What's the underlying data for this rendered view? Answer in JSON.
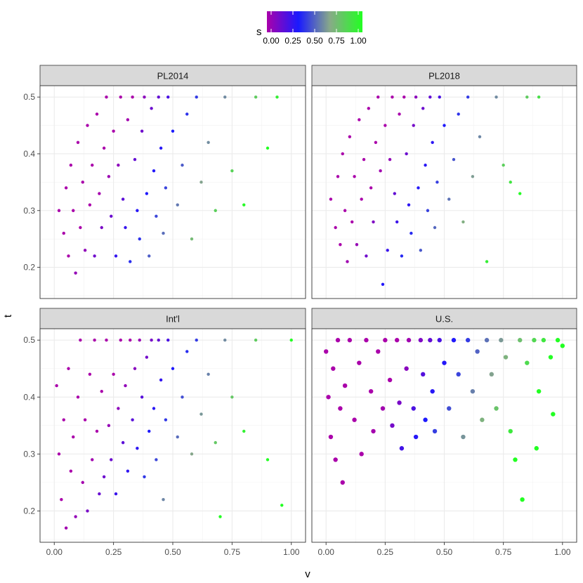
{
  "chart_data": {
    "type": "scatter",
    "xlabel": "v",
    "ylabel": "t",
    "xlim": [
      -0.06,
      1.06
    ],
    "x_ticks": [
      0.0,
      0.25,
      0.5,
      0.75,
      1.0
    ],
    "x_tick_labels": [
      "0.00",
      "0.25",
      "0.50",
      "0.75",
      "1.00"
    ],
    "y_ticks": [
      0.2,
      0.3,
      0.4,
      0.5
    ],
    "y_tick_labels": [
      "0.2",
      "0.3",
      "0.4",
      "0.5"
    ],
    "grid": true,
    "legend": {
      "title": "s",
      "placement": "top",
      "type": "colorbar",
      "range": [
        0,
        1
      ],
      "ticks": [
        0.0,
        0.25,
        0.5,
        0.75,
        1.0
      ],
      "tick_labels": [
        "0.00",
        "0.25",
        "0.50",
        "0.75",
        "1.00"
      ],
      "colors": [
        "#aa00aa",
        "#1a1aff",
        "#88aa88",
        "#22ff22"
      ]
    },
    "panels": [
      {
        "label": "PL2014",
        "ylim": [
          0.145,
          0.52
        ],
        "points": [
          [
            0.02,
            0.3
          ],
          [
            0.04,
            0.26
          ],
          [
            0.05,
            0.34
          ],
          [
            0.06,
            0.22
          ],
          [
            0.07,
            0.38
          ],
          [
            0.08,
            0.3
          ],
          [
            0.09,
            0.19
          ],
          [
            0.1,
            0.42
          ],
          [
            0.11,
            0.27
          ],
          [
            0.12,
            0.35
          ],
          [
            0.13,
            0.23
          ],
          [
            0.14,
            0.45
          ],
          [
            0.15,
            0.31
          ],
          [
            0.16,
            0.38
          ],
          [
            0.17,
            0.22
          ],
          [
            0.18,
            0.47
          ],
          [
            0.19,
            0.33
          ],
          [
            0.2,
            0.27
          ],
          [
            0.21,
            0.41
          ],
          [
            0.22,
            0.5
          ],
          [
            0.23,
            0.36
          ],
          [
            0.24,
            0.29
          ],
          [
            0.25,
            0.44
          ],
          [
            0.26,
            0.22
          ],
          [
            0.27,
            0.38
          ],
          [
            0.28,
            0.5
          ],
          [
            0.29,
            0.32
          ],
          [
            0.3,
            0.27
          ],
          [
            0.31,
            0.46
          ],
          [
            0.32,
            0.21
          ],
          [
            0.33,
            0.5
          ],
          [
            0.34,
            0.39
          ],
          [
            0.35,
            0.3
          ],
          [
            0.36,
            0.25
          ],
          [
            0.37,
            0.44
          ],
          [
            0.38,
            0.5
          ],
          [
            0.39,
            0.33
          ],
          [
            0.4,
            0.22
          ],
          [
            0.41,
            0.48
          ],
          [
            0.42,
            0.37
          ],
          [
            0.43,
            0.29
          ],
          [
            0.44,
            0.5
          ],
          [
            0.45,
            0.41
          ],
          [
            0.46,
            0.26
          ],
          [
            0.47,
            0.34
          ],
          [
            0.48,
            0.5
          ],
          [
            0.5,
            0.44
          ],
          [
            0.52,
            0.31
          ],
          [
            0.54,
            0.38
          ],
          [
            0.56,
            0.47
          ],
          [
            0.58,
            0.25
          ],
          [
            0.6,
            0.5
          ],
          [
            0.62,
            0.35
          ],
          [
            0.65,
            0.42
          ],
          [
            0.68,
            0.3
          ],
          [
            0.72,
            0.5
          ],
          [
            0.75,
            0.37
          ],
          [
            0.8,
            0.31
          ],
          [
            0.85,
            0.5
          ],
          [
            0.9,
            0.41
          ],
          [
            0.94,
            0.5
          ]
        ]
      },
      {
        "label": "PL2018",
        "ylim": [
          0.145,
          0.52
        ],
        "points": [
          [
            0.02,
            0.32
          ],
          [
            0.04,
            0.27
          ],
          [
            0.05,
            0.36
          ],
          [
            0.06,
            0.24
          ],
          [
            0.07,
            0.4
          ],
          [
            0.08,
            0.3
          ],
          [
            0.09,
            0.21
          ],
          [
            0.1,
            0.43
          ],
          [
            0.11,
            0.28
          ],
          [
            0.12,
            0.36
          ],
          [
            0.13,
            0.24
          ],
          [
            0.14,
            0.46
          ],
          [
            0.15,
            0.32
          ],
          [
            0.16,
            0.39
          ],
          [
            0.17,
            0.22
          ],
          [
            0.18,
            0.48
          ],
          [
            0.19,
            0.34
          ],
          [
            0.2,
            0.28
          ],
          [
            0.21,
            0.42
          ],
          [
            0.22,
            0.5
          ],
          [
            0.23,
            0.37
          ],
          [
            0.24,
            0.17
          ],
          [
            0.25,
            0.45
          ],
          [
            0.26,
            0.23
          ],
          [
            0.27,
            0.39
          ],
          [
            0.28,
            0.5
          ],
          [
            0.29,
            0.33
          ],
          [
            0.3,
            0.28
          ],
          [
            0.31,
            0.47
          ],
          [
            0.32,
            0.22
          ],
          [
            0.33,
            0.5
          ],
          [
            0.34,
            0.4
          ],
          [
            0.35,
            0.31
          ],
          [
            0.36,
            0.26
          ],
          [
            0.37,
            0.45
          ],
          [
            0.38,
            0.5
          ],
          [
            0.39,
            0.34
          ],
          [
            0.4,
            0.23
          ],
          [
            0.41,
            0.48
          ],
          [
            0.42,
            0.38
          ],
          [
            0.43,
            0.3
          ],
          [
            0.44,
            0.5
          ],
          [
            0.45,
            0.42
          ],
          [
            0.46,
            0.27
          ],
          [
            0.47,
            0.35
          ],
          [
            0.48,
            0.5
          ],
          [
            0.5,
            0.45
          ],
          [
            0.52,
            0.32
          ],
          [
            0.54,
            0.39
          ],
          [
            0.56,
            0.47
          ],
          [
            0.58,
            0.28
          ],
          [
            0.6,
            0.5
          ],
          [
            0.62,
            0.36
          ],
          [
            0.65,
            0.43
          ],
          [
            0.68,
            0.21
          ],
          [
            0.72,
            0.5
          ],
          [
            0.75,
            0.38
          ],
          [
            0.78,
            0.35
          ],
          [
            0.82,
            0.33
          ],
          [
            0.85,
            0.5
          ],
          [
            0.9,
            0.5
          ]
        ]
      },
      {
        "label": "Int'l",
        "ylim": [
          0.145,
          0.52
        ],
        "points": [
          [
            0.01,
            0.42
          ],
          [
            0.02,
            0.3
          ],
          [
            0.03,
            0.22
          ],
          [
            0.04,
            0.36
          ],
          [
            0.05,
            0.17
          ],
          [
            0.06,
            0.45
          ],
          [
            0.07,
            0.27
          ],
          [
            0.08,
            0.33
          ],
          [
            0.09,
            0.19
          ],
          [
            0.1,
            0.4
          ],
          [
            0.11,
            0.5
          ],
          [
            0.12,
            0.25
          ],
          [
            0.13,
            0.36
          ],
          [
            0.14,
            0.2
          ],
          [
            0.15,
            0.44
          ],
          [
            0.16,
            0.29
          ],
          [
            0.17,
            0.5
          ],
          [
            0.18,
            0.34
          ],
          [
            0.19,
            0.23
          ],
          [
            0.2,
            0.41
          ],
          [
            0.21,
            0.26
          ],
          [
            0.22,
            0.5
          ],
          [
            0.23,
            0.35
          ],
          [
            0.24,
            0.29
          ],
          [
            0.25,
            0.44
          ],
          [
            0.26,
            0.23
          ],
          [
            0.27,
            0.38
          ],
          [
            0.28,
            0.5
          ],
          [
            0.29,
            0.32
          ],
          [
            0.3,
            0.42
          ],
          [
            0.31,
            0.27
          ],
          [
            0.32,
            0.5
          ],
          [
            0.33,
            0.36
          ],
          [
            0.34,
            0.45
          ],
          [
            0.35,
            0.31
          ],
          [
            0.36,
            0.5
          ],
          [
            0.37,
            0.4
          ],
          [
            0.38,
            0.26
          ],
          [
            0.39,
            0.47
          ],
          [
            0.4,
            0.34
          ],
          [
            0.41,
            0.5
          ],
          [
            0.42,
            0.38
          ],
          [
            0.43,
            0.29
          ],
          [
            0.44,
            0.5
          ],
          [
            0.45,
            0.43
          ],
          [
            0.46,
            0.22
          ],
          [
            0.47,
            0.36
          ],
          [
            0.48,
            0.5
          ],
          [
            0.5,
            0.45
          ],
          [
            0.52,
            0.33
          ],
          [
            0.54,
            0.4
          ],
          [
            0.56,
            0.48
          ],
          [
            0.58,
            0.3
          ],
          [
            0.6,
            0.5
          ],
          [
            0.62,
            0.37
          ],
          [
            0.65,
            0.44
          ],
          [
            0.68,
            0.32
          ],
          [
            0.7,
            0.19
          ],
          [
            0.72,
            0.5
          ],
          [
            0.75,
            0.4
          ],
          [
            0.8,
            0.34
          ],
          [
            0.85,
            0.5
          ],
          [
            0.9,
            0.29
          ],
          [
            0.96,
            0.21
          ],
          [
            1.0,
            0.5
          ]
        ]
      },
      {
        "label": "U.S.",
        "ylim": [
          0.145,
          0.52
        ],
        "points": [
          [
            0.0,
            0.48
          ],
          [
            0.01,
            0.4
          ],
          [
            0.02,
            0.33
          ],
          [
            0.03,
            0.45
          ],
          [
            0.04,
            0.29
          ],
          [
            0.05,
            0.5
          ],
          [
            0.06,
            0.38
          ],
          [
            0.07,
            0.25
          ],
          [
            0.08,
            0.42
          ],
          [
            0.1,
            0.5
          ],
          [
            0.12,
            0.36
          ],
          [
            0.14,
            0.46
          ],
          [
            0.15,
            0.3
          ],
          [
            0.17,
            0.5
          ],
          [
            0.19,
            0.41
          ],
          [
            0.2,
            0.34
          ],
          [
            0.22,
            0.48
          ],
          [
            0.24,
            0.38
          ],
          [
            0.25,
            0.5
          ],
          [
            0.27,
            0.43
          ],
          [
            0.28,
            0.35
          ],
          [
            0.3,
            0.5
          ],
          [
            0.31,
            0.39
          ],
          [
            0.32,
            0.31
          ],
          [
            0.34,
            0.45
          ],
          [
            0.35,
            0.5
          ],
          [
            0.37,
            0.38
          ],
          [
            0.38,
            0.33
          ],
          [
            0.4,
            0.5
          ],
          [
            0.41,
            0.44
          ],
          [
            0.42,
            0.36
          ],
          [
            0.44,
            0.5
          ],
          [
            0.45,
            0.41
          ],
          [
            0.46,
            0.34
          ],
          [
            0.48,
            0.5
          ],
          [
            0.5,
            0.46
          ],
          [
            0.52,
            0.38
          ],
          [
            0.54,
            0.5
          ],
          [
            0.56,
            0.44
          ],
          [
            0.58,
            0.33
          ],
          [
            0.6,
            0.5
          ],
          [
            0.62,
            0.41
          ],
          [
            0.64,
            0.48
          ],
          [
            0.66,
            0.36
          ],
          [
            0.68,
            0.5
          ],
          [
            0.7,
            0.44
          ],
          [
            0.72,
            0.38
          ],
          [
            0.74,
            0.5
          ],
          [
            0.76,
            0.47
          ],
          [
            0.78,
            0.34
          ],
          [
            0.8,
            0.29
          ],
          [
            0.82,
            0.5
          ],
          [
            0.83,
            0.22
          ],
          [
            0.85,
            0.46
          ],
          [
            0.88,
            0.5
          ],
          [
            0.89,
            0.31
          ],
          [
            0.9,
            0.41
          ],
          [
            0.92,
            0.5
          ],
          [
            0.95,
            0.47
          ],
          [
            0.96,
            0.37
          ],
          [
            0.98,
            0.5
          ],
          [
            1.0,
            0.49
          ]
        ]
      }
    ]
  }
}
